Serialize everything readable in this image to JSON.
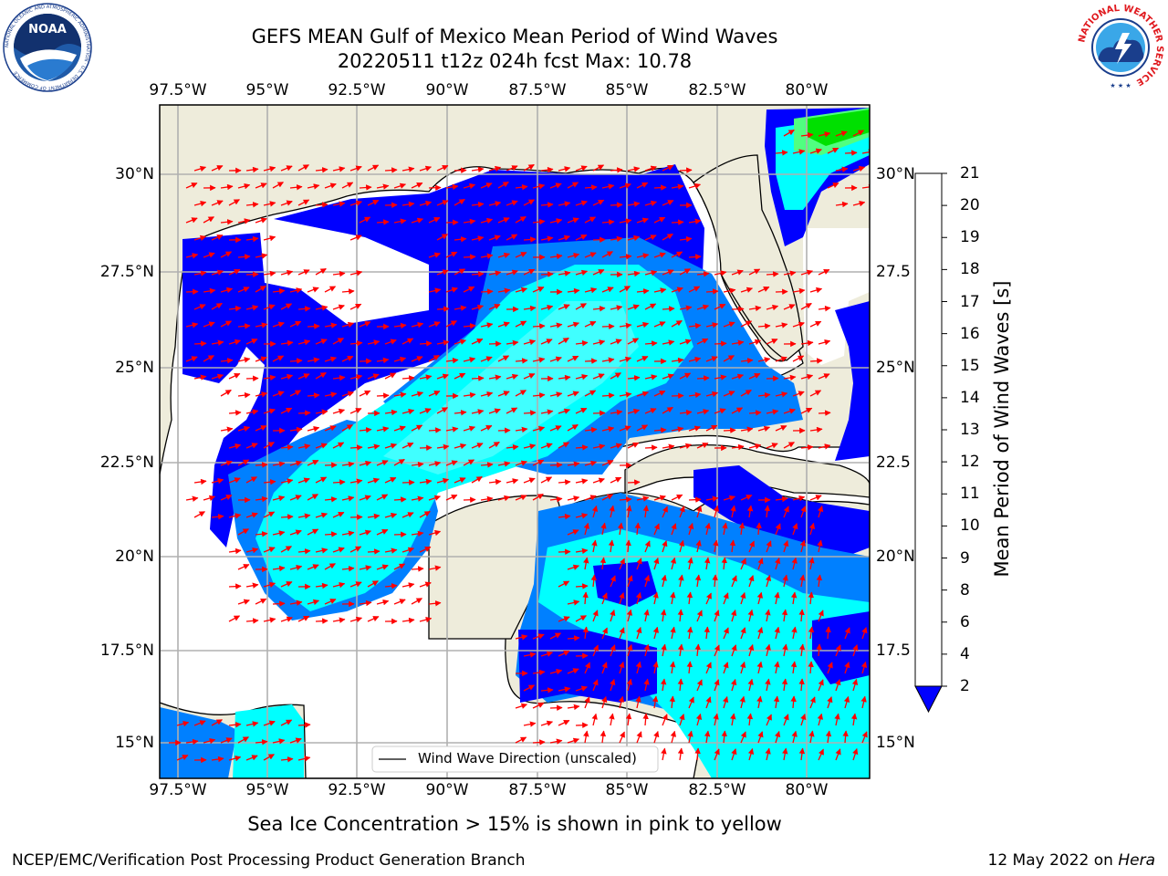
{
  "header": {
    "title_line1": "GEFS MEAN Gulf of Mexico Mean Period of Wind Waves",
    "title_line2": "20220511 t12z 024h fcst   Max: 10.78"
  },
  "logos": {
    "left": {
      "icon": "noaa-logo",
      "ring_text": "NATIONAL OCEANIC AND ATMOSPHERIC ADMINISTRATION · U.S. DEPARTMENT OF COMMERCE",
      "center_text": "NOAA"
    },
    "right": {
      "icon": "nws-logo",
      "ring_text": "NATIONAL WEATHER SERVICE"
    }
  },
  "map": {
    "lon_ticks_top": [
      "97.5°W",
      "95°W",
      "92.5°W",
      "90°W",
      "87.5°W",
      "85°W",
      "82.5°W",
      "80°W"
    ],
    "lon_ticks_bottom": [
      "97.5°W",
      "95°W",
      "92.5°W",
      "90°W",
      "87.5°W",
      "85°W",
      "82.5°W",
      "80°W"
    ],
    "lat_ticks_left": [
      "30°N",
      "27.5°N",
      "25°N",
      "22.5°N",
      "20°N",
      "17.5°N",
      "15°N"
    ],
    "lat_ticks_right": [
      "30°N",
      "27.5",
      "25°N",
      "22.5",
      "20°N",
      "17.5",
      "15°N"
    ],
    "legend_label": "Wind Wave Direction (unscaled)",
    "colors": {
      "land": "#eeecdb",
      "ocean_gap": "#ffffff",
      "grid": "#b0b0b0",
      "arrow": "#ff0000"
    }
  },
  "colorbar": {
    "label": "Mean Period of Wind Waves [s]",
    "ticks": [
      "2",
      "4",
      "6",
      "8",
      "9",
      "10",
      "11",
      "12",
      "13",
      "14",
      "15",
      "16",
      "17",
      "18",
      "19",
      "20",
      "21"
    ],
    "colors": [
      "#0000ff",
      "#0080ff",
      "#00ffff",
      "#40ffff",
      "#a0ffff",
      "#50ff80",
      "#00e000",
      "#60e000",
      "#c0f000",
      "#e0ff00",
      "#ffff00",
      "#ffd800",
      "#ffb000",
      "#ff8800",
      "#ff5000",
      "#ff2800",
      "#ff0000"
    ]
  },
  "caption": "Sea Ice Concentration > 15% is shown in pink to yellow",
  "footer": {
    "left": "NCEP/EMC/Verification Post Processing Product Generation Branch",
    "right_prefix": "12 May 2022 on ",
    "right_machine": "Hera"
  }
}
